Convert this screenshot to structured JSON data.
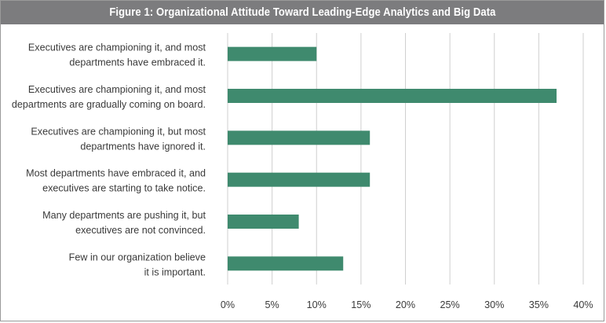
{
  "chart_data": {
    "type": "bar",
    "orientation": "horizontal",
    "title": "Figure 1: Organizational Attitude Toward Leading-Edge Analytics and Big Data",
    "categories": [
      [
        "Executives are championing it, and most",
        "departments have embraced it."
      ],
      [
        "Executives are championing it, and most",
        "departments are gradually coming on board."
      ],
      [
        "Executives are championing it, but most",
        "departments have ignored it."
      ],
      [
        "Most departments have embraced it, and",
        "executives are starting to take notice."
      ],
      [
        "Many departments are pushing it, but",
        "executives are not convinced."
      ],
      [
        "Few in our organization believe",
        "it is important."
      ]
    ],
    "values": [
      10,
      37,
      16,
      16,
      8,
      13
    ],
    "xlim": [
      0,
      40
    ],
    "xticks": [
      "0%",
      "5%",
      "10%",
      "15%",
      "20%",
      "25%",
      "30%",
      "35%",
      "40%"
    ],
    "xlabel": "",
    "ylabel": "",
    "grid": "vertical",
    "legend": "none",
    "bar_color": "#3f8a6e",
    "grid_color": "#cfcfcf"
  }
}
